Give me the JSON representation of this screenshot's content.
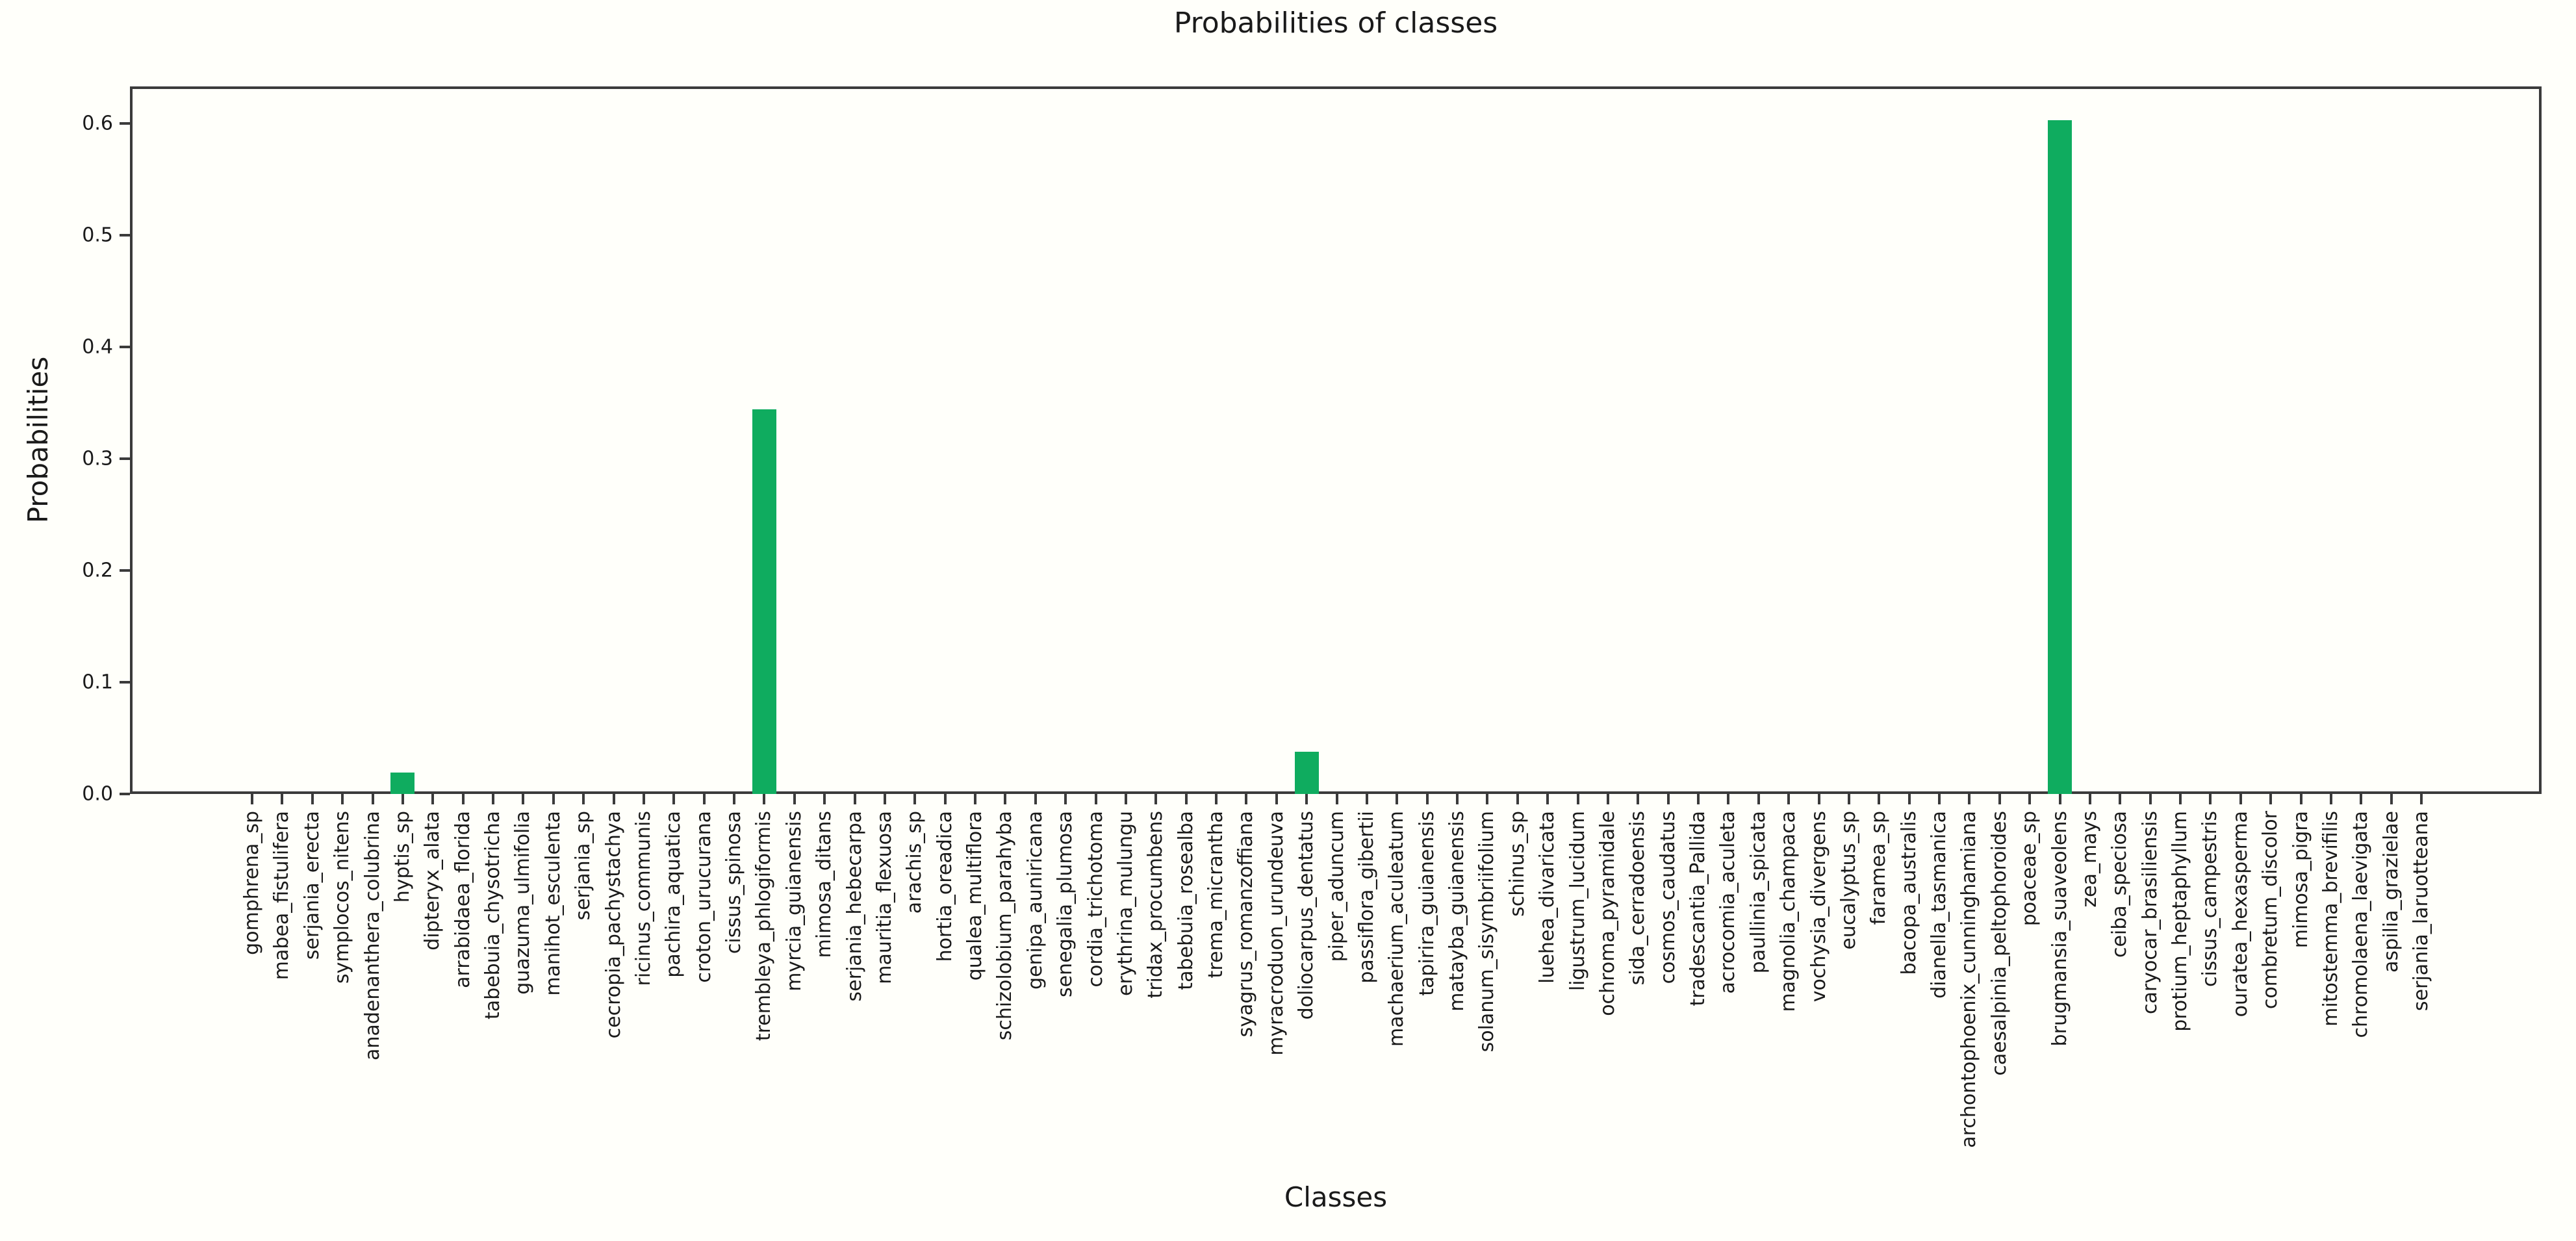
{
  "chart_data": {
    "type": "bar",
    "title": "Probabilities of classes",
    "xlabel": "Classes",
    "ylabel": "Probabilities",
    "ylim": [
      0,
      0.633
    ],
    "yticks": [
      "0.0",
      "0.1",
      "0.2",
      "0.3",
      "0.4",
      "0.5",
      "0.6"
    ],
    "ytick_values": [
      0.0,
      0.1,
      0.2,
      0.3,
      0.4,
      0.5,
      0.6
    ],
    "grid": false,
    "legend_position": "none",
    "bar_color": "#0fac5f",
    "background_color": "#fffffa",
    "axis_color": "#3b3b3b",
    "xtick_rotation": "vertical",
    "categories": [
      "gomphrena_sp",
      "mabea_fistulifera",
      "serjania_erecta",
      "symplocos_nitens",
      "anadenanthera_colubrina",
      "hyptis_sp",
      "dipteryx_alata",
      "arrabidaea_florida",
      "tabebuia_chysotricha",
      "guazuma_ulmifolia",
      "manihot_esculenta",
      "serjania_sp",
      "cecropia_pachystachya",
      "ricinus_communis",
      "pachira_aquatica",
      "croton_urucurana",
      "cissus_spinosa",
      "trembleya_phlogiformis",
      "myrcia_guianensis",
      "mimosa_ditans",
      "serjania_hebecarpa",
      "mauritia_flexuosa",
      "arachis_sp",
      "hortia_oreadica",
      "qualea_multiflora",
      "schizolobium_parahyba",
      "genipa_auniricana",
      "senegalia_plumosa",
      "cordia_trichotoma",
      "erythrina_mulungu",
      "tridax_procumbens",
      "tabebuia_rosealba",
      "trema_micrantha",
      "syagrus_romanzoffiana",
      "myracroduon_urundeuva",
      "doliocarpus_dentatus",
      "piper_aduncum",
      "passiflora_gibertii",
      "machaerium_aculeatum",
      "tapirira_guianensis",
      "matayba_guianensis",
      "solanum_sisymbriifolium",
      "schinus_sp",
      "luehea_divaricata",
      "ligustrum_lucidum",
      "ochroma_pyramidale",
      "sida_cerradoensis",
      "cosmos_caudatus",
      "tradescantia_Pallida",
      "acrocomia_aculeta",
      "paullinia_spicata",
      "magnolia_champaca",
      "vochysia_divergens",
      "eucalyptus_sp",
      "faramea_sp",
      "bacopa_australis",
      "dianella_tasmanica",
      "archontophoenix_cunninghamiana",
      "caesalpinia_peltophoroides",
      "poaceae_sp",
      "brugmansia_suaveolens",
      "zea_mays",
      "ceiba_speciosa",
      "caryocar_brasiliensis",
      "protium_heptaphyllum",
      "cissus_campestris",
      "ouratea_hexasperma",
      "combretum_discolor",
      "mimosa_pigra",
      "mitostemma_brevifilis",
      "chromolaena_laevigata",
      "aspilia_grazielae",
      "serjania_laruotteana"
    ],
    "values": [
      0,
      0,
      0,
      0,
      0,
      0.019,
      0,
      0,
      0,
      0,
      0,
      0,
      0,
      0,
      0,
      0,
      0,
      0.344,
      0,
      0,
      0,
      0,
      0,
      0,
      0,
      0,
      0,
      0,
      0,
      0,
      0,
      0,
      0,
      0,
      0,
      0.038,
      0,
      0,
      0,
      0,
      0,
      0,
      0,
      0,
      0,
      0,
      0,
      0,
      0,
      0,
      0,
      0,
      0,
      0,
      0,
      0,
      0,
      0,
      0,
      0,
      0.603,
      0,
      0,
      0,
      0,
      0,
      0,
      0,
      0,
      0,
      0,
      0,
      0
    ]
  }
}
